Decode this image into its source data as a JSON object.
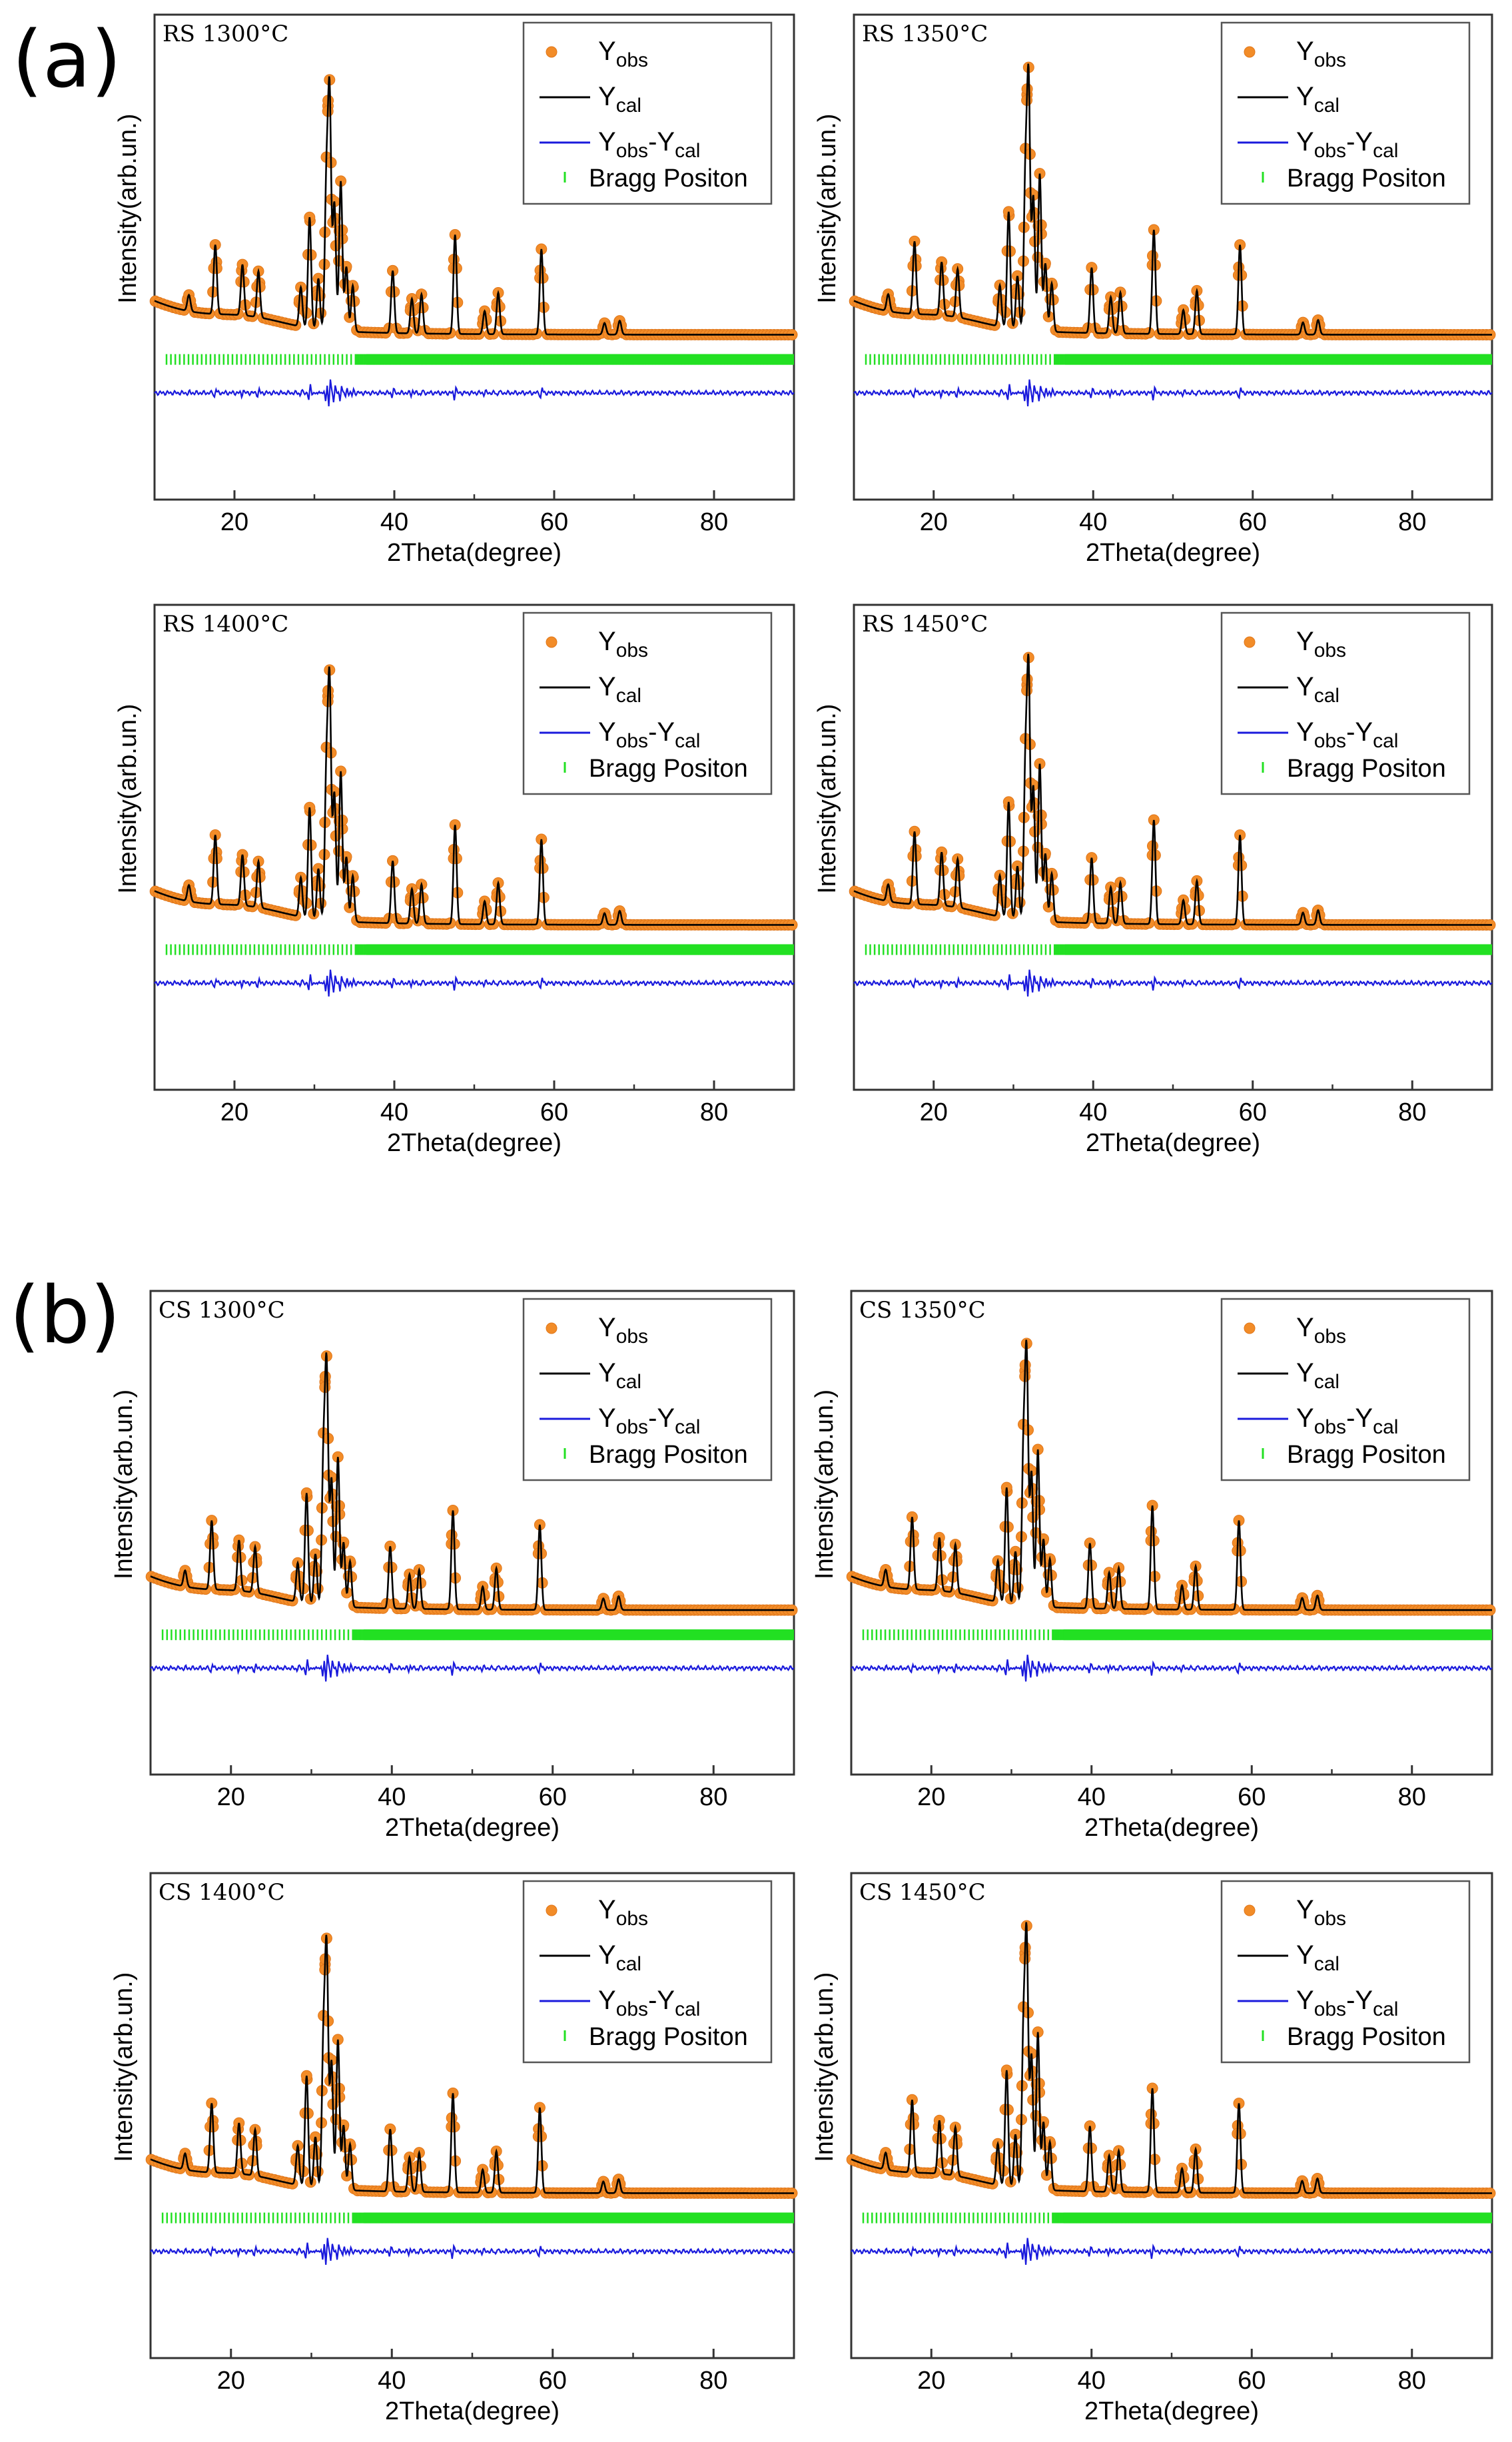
{
  "figure": {
    "panel_labels": [
      "(a)",
      "(b)"
    ],
    "legend": {
      "obs": {
        "main": "Y",
        "sub": "obs"
      },
      "cal": {
        "main": "Y",
        "sub": "cal"
      },
      "diff": {
        "main": "Y",
        "sub1": "obs",
        "mid": "-Y",
        "sub2": "cal"
      },
      "bragg": "Bragg Positon"
    },
    "colors": {
      "obs": "#f28c28",
      "obs_edge": "#e0761a",
      "cal": "#000000",
      "diff": "#1a1adc",
      "bragg": "#22e022",
      "frame": "#333333",
      "legend_border": "#555555"
    }
  },
  "chart_data": [
    {
      "type": "line",
      "title": "RS 1300°C",
      "xlabel": "2Theta(degree)",
      "ylabel": "Intensity(arb.un.)",
      "xlim": [
        10,
        90
      ],
      "xticks": [
        20,
        40,
        60,
        80
      ],
      "grid": false,
      "legend": "top-right",
      "series": [
        "Yobs",
        "Ycal",
        "Yobs-Ycal",
        "Bragg Positon"
      ],
      "peak_scale": 1.0
    },
    {
      "type": "line",
      "title": "RS 1350°C",
      "xlabel": "2Theta(degree)",
      "ylabel": "Intensity(arb.un.)",
      "xlim": [
        10,
        90
      ],
      "xticks": [
        20,
        40,
        60,
        80
      ],
      "grid": false,
      "legend": "top-right",
      "series": [
        "Yobs",
        "Ycal",
        "Yobs-Ycal",
        "Bragg Positon"
      ],
      "peak_scale": 1.05
    },
    {
      "type": "line",
      "title": "RS 1400°C",
      "xlabel": "2Theta(degree)",
      "ylabel": "Intensity(arb.un.)",
      "xlim": [
        10,
        90
      ],
      "xticks": [
        20,
        40,
        60,
        80
      ],
      "grid": false,
      "legend": "top-right",
      "series": [
        "Yobs",
        "Ycal",
        "Yobs-Ycal",
        "Bragg Positon"
      ],
      "peak_scale": 1.0
    },
    {
      "type": "line",
      "title": "RS 1450°C",
      "xlabel": "2Theta(degree)",
      "ylabel": "Intensity(arb.un.)",
      "xlim": [
        10,
        90
      ],
      "xticks": [
        20,
        40,
        60,
        80
      ],
      "grid": false,
      "legend": "top-right",
      "series": [
        "Yobs",
        "Ycal",
        "Yobs-Ycal",
        "Bragg Positon"
      ],
      "peak_scale": 1.05
    },
    {
      "type": "line",
      "title": "CS 1300°C",
      "xlabel": "2Theta(degree)",
      "ylabel": "Intensity(arb.un.)",
      "xlim": [
        10,
        90
      ],
      "xticks": [
        20,
        40,
        60,
        80
      ],
      "grid": false,
      "legend": "top-right",
      "series": [
        "Yobs",
        "Ycal",
        "Yobs-Ycal",
        "Bragg Positon"
      ],
      "peak_scale": 1.0
    },
    {
      "type": "line",
      "title": "CS 1350°C",
      "xlabel": "2Theta(degree)",
      "ylabel": "Intensity(arb.un.)",
      "xlim": [
        10,
        90
      ],
      "xticks": [
        20,
        40,
        60,
        80
      ],
      "grid": false,
      "legend": "top-right",
      "series": [
        "Yobs",
        "Ycal",
        "Yobs-Ycal",
        "Bragg Positon"
      ],
      "peak_scale": 1.05
    },
    {
      "type": "line",
      "title": "CS 1400°C",
      "xlabel": "2Theta(degree)",
      "ylabel": "Intensity(arb.un.)",
      "xlim": [
        10,
        90
      ],
      "xticks": [
        20,
        40,
        60,
        80
      ],
      "grid": false,
      "legend": "top-right",
      "series": [
        "Yobs",
        "Ycal",
        "Yobs-Ycal",
        "Bragg Positon"
      ],
      "peak_scale": 1.0
    },
    {
      "type": "line",
      "title": "CS 1450°C",
      "xlabel": "2Theta(degree)",
      "ylabel": "Intensity(arb.un.)",
      "xlim": [
        10,
        90
      ],
      "xticks": [
        20,
        40,
        60,
        80
      ],
      "grid": false,
      "legend": "top-right",
      "series": [
        "Yobs",
        "Ycal",
        "Yobs-Ycal",
        "Bragg Positon"
      ],
      "peak_scale": 1.05
    }
  ],
  "pattern": {
    "peaks_2theta": [
      14.3,
      17.6,
      21.0,
      23.0,
      28.3,
      29.4,
      30.5,
      31.5,
      31.9,
      32.5,
      33.3,
      34.0,
      34.8,
      39.8,
      42.2,
      43.4,
      47.6,
      51.3,
      53.0,
      58.4,
      66.3,
      68.2
    ],
    "peaks_rel_intensity": [
      0.07,
      0.3,
      0.22,
      0.2,
      0.17,
      0.48,
      0.22,
      0.62,
      1.0,
      0.55,
      0.65,
      0.28,
      0.2,
      0.27,
      0.15,
      0.17,
      0.43,
      0.1,
      0.18,
      0.37,
      0.05,
      0.06
    ]
  }
}
